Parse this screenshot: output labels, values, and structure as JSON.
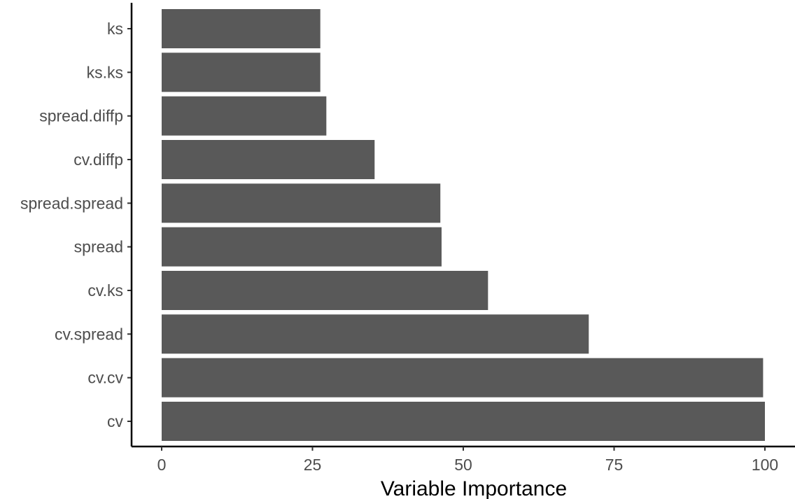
{
  "chart_data": {
    "type": "bar",
    "orientation": "horizontal",
    "categories": [
      "ks",
      "ks.ks",
      "spread.diffp",
      "cv.diffp",
      "spread.spread",
      "spread",
      "cv.ks",
      "cv.spread",
      "cv.cv",
      "cv"
    ],
    "values": [
      26.3,
      26.3,
      27.3,
      35.3,
      46.2,
      46.4,
      54.1,
      70.8,
      99.7,
      100
    ],
    "xlabel": "Variable Importance",
    "ylabel": "",
    "xlim": [
      -1,
      102
    ],
    "x_ticks": [
      "0",
      "25",
      "50",
      "75",
      "100"
    ],
    "x_tick_values": [
      0,
      25,
      50,
      75,
      100
    ],
    "grid": false,
    "bar_color": "#595959",
    "axis_color": "#000000",
    "tick_label_color": "#4d4d4d"
  }
}
